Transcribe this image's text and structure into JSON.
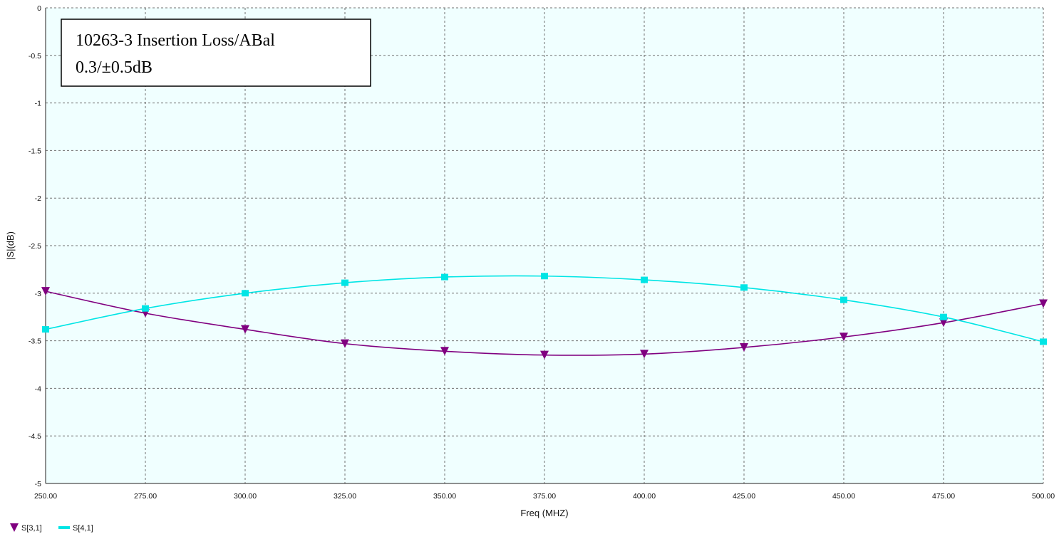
{
  "chart_data": {
    "type": "line",
    "title": "",
    "xlabel": "Freq (MHZ)",
    "ylabel": "|S|(dB)",
    "xlim": [
      250,
      500
    ],
    "ylim": [
      -5,
      0
    ],
    "x_ticks": [
      "250.00",
      "275.00",
      "300.00",
      "325.00",
      "350.00",
      "375.00",
      "400.00",
      "425.00",
      "450.00",
      "475.00",
      "500.00"
    ],
    "y_ticks": [
      "0",
      "-0.5",
      "-1",
      "-1.5",
      "-2",
      "-2.5",
      "-3",
      "-3.5",
      "-4",
      "-4.5",
      "-5"
    ],
    "grid": true,
    "legend_position": "bottom-left",
    "annotation_lines": [
      "10263-3 Insertion Loss/ABal",
      "0.3/±0.5dB"
    ],
    "series": [
      {
        "name": "S[3,1]",
        "color": "#800080",
        "marker": "triangle-down",
        "x": [
          250,
          275,
          300,
          325,
          350,
          375,
          400,
          425,
          450,
          475,
          500
        ],
        "y": [
          -2.98,
          -3.21,
          -3.38,
          -3.53,
          -3.61,
          -3.65,
          -3.64,
          -3.57,
          -3.46,
          -3.31,
          -3.11
        ]
      },
      {
        "name": "S[4,1]",
        "color": "#00e5e5",
        "marker": "square",
        "x": [
          250,
          275,
          300,
          325,
          350,
          375,
          400,
          425,
          450,
          475,
          500
        ],
        "y": [
          -3.38,
          -3.16,
          -3.0,
          -2.89,
          -2.83,
          -2.82,
          -2.86,
          -2.94,
          -3.07,
          -3.25,
          -3.51
        ]
      }
    ]
  }
}
